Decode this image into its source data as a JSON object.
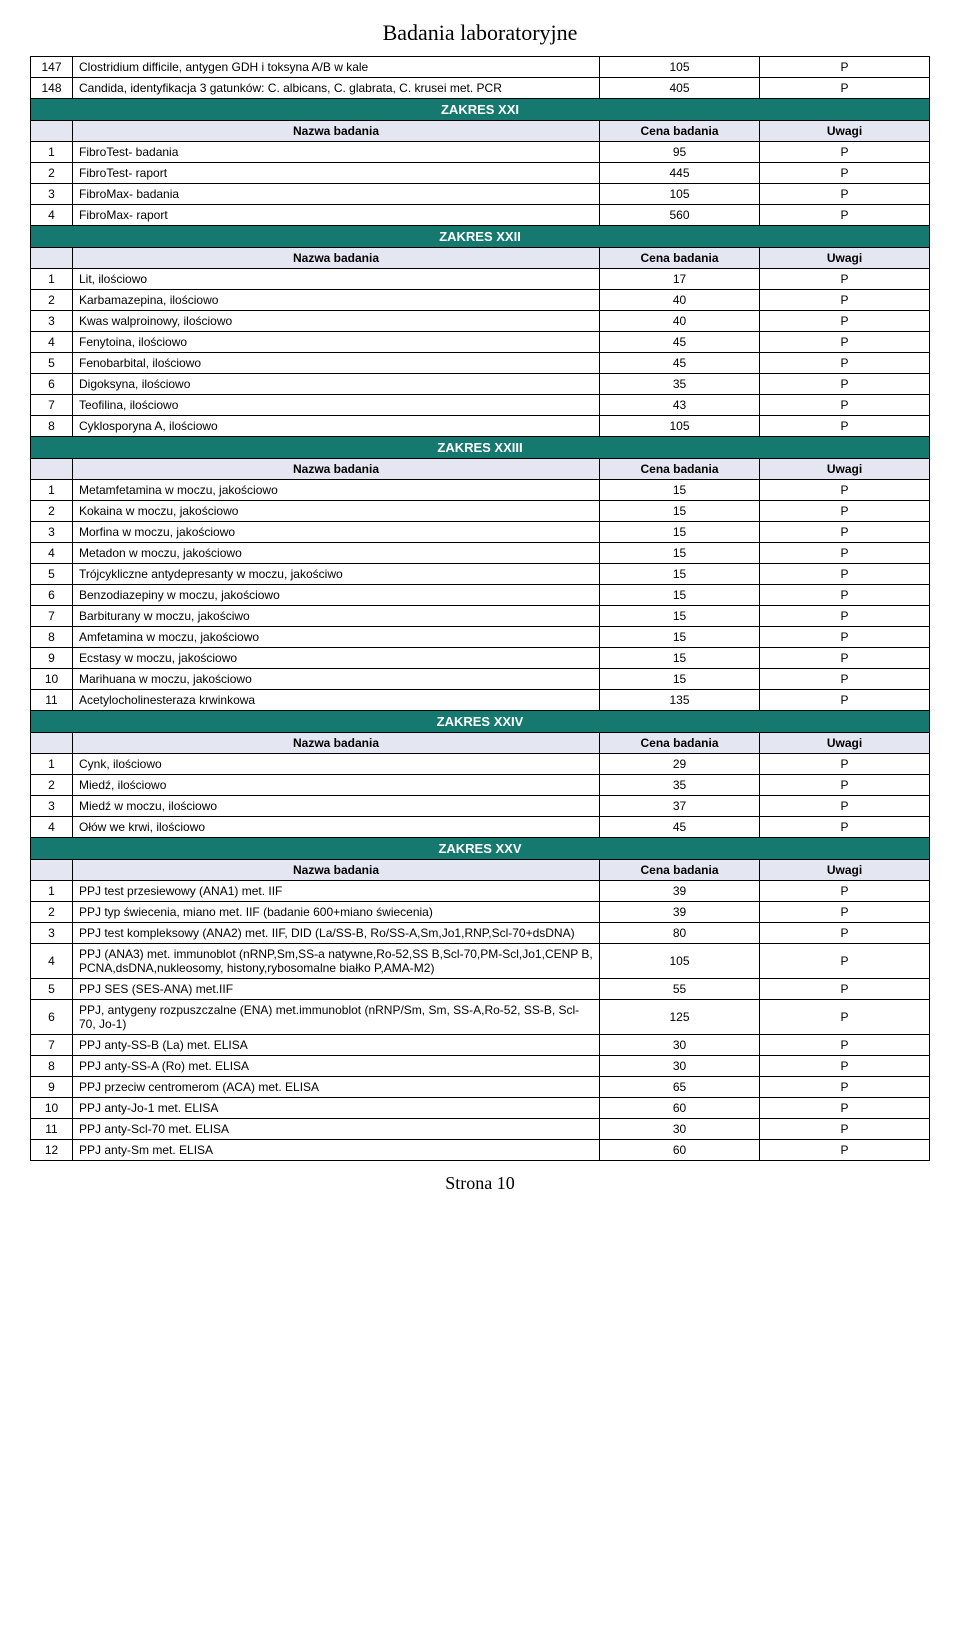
{
  "page_title": "Badania laboratoryjne",
  "footer": "Strona 10",
  "colors": {
    "band_bg": "#16796f",
    "band_fg": "#ffffff",
    "header_bg": "#e4e6f2",
    "border": "#000000",
    "page_bg": "#ffffff"
  },
  "header_labels": {
    "name": "Nazwa badania",
    "price": "Cena badania",
    "note": "Uwagi"
  },
  "pre_rows": [
    {
      "num": "147",
      "name": "Clostridium difficile, antygen GDH i toksyna A/B w kale",
      "price": "105",
      "note": "P"
    },
    {
      "num": "148",
      "name": "Candida, identyfikacja 3 gatunków: C. albicans, C. glabrata, C. krusei met. PCR",
      "price": "405",
      "note": "P"
    }
  ],
  "sections": [
    {
      "title": "ZAKRES XXI",
      "rows": [
        {
          "num": "1",
          "name": "FibroTest- badania",
          "price": "95",
          "note": "P"
        },
        {
          "num": "2",
          "name": "FibroTest- raport",
          "price": "445",
          "note": "P"
        },
        {
          "num": "3",
          "name": "FibroMax- badania",
          "price": "105",
          "note": "P"
        },
        {
          "num": "4",
          "name": "FibroMax- raport",
          "price": "560",
          "note": "P"
        }
      ]
    },
    {
      "title": "ZAKRES XXII",
      "rows": [
        {
          "num": "1",
          "name": "Lit, ilościowo",
          "price": "17",
          "note": "P"
        },
        {
          "num": "2",
          "name": "Karbamazepina, ilościowo",
          "price": "40",
          "note": "P"
        },
        {
          "num": "3",
          "name": "Kwas walproinowy, ilościowo",
          "price": "40",
          "note": "P"
        },
        {
          "num": "4",
          "name": "Fenytoina, ilościowo",
          "price": "45",
          "note": "P"
        },
        {
          "num": "5",
          "name": "Fenobarbital, ilościowo",
          "price": "45",
          "note": "P"
        },
        {
          "num": "6",
          "name": "Digoksyna, ilościowo",
          "price": "35",
          "note": "P"
        },
        {
          "num": "7",
          "name": "Teofilina, ilościowo",
          "price": "43",
          "note": "P"
        },
        {
          "num": "8",
          "name": "Cyklosporyna A, ilościowo",
          "price": "105",
          "note": "P"
        }
      ]
    },
    {
      "title": "ZAKRES XXIII",
      "rows": [
        {
          "num": "1",
          "name": "Metamfetamina w moczu, jakościowo",
          "price": "15",
          "note": "P"
        },
        {
          "num": "2",
          "name": "Kokaina w moczu, jakościowo",
          "price": "15",
          "note": "P"
        },
        {
          "num": "3",
          "name": "Morfina w moczu, jakościowo",
          "price": "15",
          "note": "P"
        },
        {
          "num": "4",
          "name": "Metadon w moczu, jakościowo",
          "price": "15",
          "note": "P"
        },
        {
          "num": "5",
          "name": "Trójcykliczne antydepresanty w moczu, jakościwo",
          "price": "15",
          "note": "P"
        },
        {
          "num": "6",
          "name": "Benzodiazepiny w moczu, jakościowo",
          "price": "15",
          "note": "P"
        },
        {
          "num": "7",
          "name": "Barbiturany w moczu, jakościwo",
          "price": "15",
          "note": "P"
        },
        {
          "num": "8",
          "name": "Amfetamina w moczu, jakościowo",
          "price": "15",
          "note": "P"
        },
        {
          "num": "9",
          "name": "Ecstasy w moczu, jakościowo",
          "price": "15",
          "note": "P"
        },
        {
          "num": "10",
          "name": "Marihuana w moczu, jakościowo",
          "price": "15",
          "note": "P"
        },
        {
          "num": "11",
          "name": "Acetylocholinesteraza krwinkowa",
          "price": "135",
          "note": "P"
        }
      ]
    },
    {
      "title": "ZAKRES XXIV",
      "rows": [
        {
          "num": "1",
          "name": "Cynk, ilościowo",
          "price": "29",
          "note": "P"
        },
        {
          "num": "2",
          "name": "Miedź, ilościowo",
          "price": "35",
          "note": "P"
        },
        {
          "num": "3",
          "name": "Miedź w moczu, ilościowo",
          "price": "37",
          "note": "P"
        },
        {
          "num": "4",
          "name": "Ołów we krwi, ilościowo",
          "price": "45",
          "note": "P"
        }
      ]
    },
    {
      "title": "ZAKRES XXV",
      "rows": [
        {
          "num": "1",
          "name": "PPJ test przesiewowy (ANA1) met. IIF",
          "price": "39",
          "note": "P"
        },
        {
          "num": "2",
          "name": "PPJ typ świecenia, miano met. IIF (badanie 600+miano świecenia)",
          "price": "39",
          "note": "P"
        },
        {
          "num": "3",
          "name": "PPJ test kompleksowy (ANA2) met. IIF, DID (La/SS-B, Ro/SS-A,Sm,Jo1,RNP,Scl-70+dsDNA)",
          "price": "80",
          "note": "P"
        },
        {
          "num": "4",
          "name": "PPJ (ANA3) met. immunoblot  (nRNP,Sm,SS-a natywne,Ro-52,SS B,Scl-70,PM-Scl,Jo1,CENP B, PCNA,dsDNA,nukleosomy, histony,rybosomalne białko P,AMA-M2)",
          "price": "105",
          "note": "P"
        },
        {
          "num": "5",
          "name": "PPJ SES (SES-ANA) met.IIF",
          "price": "55",
          "note": "P"
        },
        {
          "num": "6",
          "name": "PPJ, antygeny rozpuszczalne (ENA) met.immunoblot (nRNP/Sm, Sm, SS-A,Ro-52, SS-B, Scl-70, Jo-1)",
          "price": "125",
          "note": "P"
        },
        {
          "num": "7",
          "name": "PPJ anty-SS-B (La) met. ELISA",
          "price": "30",
          "note": "P"
        },
        {
          "num": "8",
          "name": "PPJ anty-SS-A (Ro) met. ELISA",
          "price": "30",
          "note": "P"
        },
        {
          "num": "9",
          "name": "PPJ przeciw centromerom (ACA) met. ELISA",
          "price": "65",
          "note": "P"
        },
        {
          "num": "10",
          "name": "PPJ anty-Jo-1 met. ELISA",
          "price": "60",
          "note": "P"
        },
        {
          "num": "11",
          "name": "PPJ anty-Scl-70 met. ELISA",
          "price": "30",
          "note": "P"
        },
        {
          "num": "12",
          "name": "PPJ anty-Sm met. ELISA",
          "price": "60",
          "note": "P"
        }
      ]
    }
  ]
}
